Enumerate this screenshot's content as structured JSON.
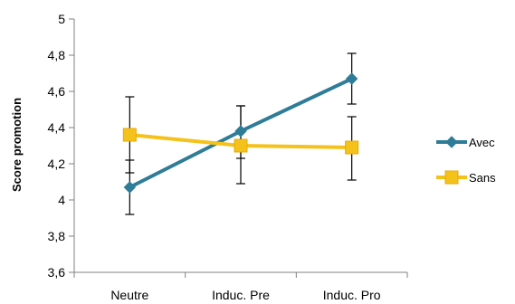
{
  "chart_data": {
    "type": "line",
    "categories": [
      "Neutre",
      "Induc. Pre",
      "Induc. Pro"
    ],
    "ylabel": "Score promotion",
    "xlabel": "",
    "ylim": [
      3.6,
      5
    ],
    "yticks": [
      "3,6",
      "3,8",
      "4",
      "4,2",
      "4,4",
      "4,6",
      "4,8",
      "5"
    ],
    "ytick_values": [
      3.6,
      3.8,
      4.0,
      4.2,
      4.4,
      4.6,
      4.8,
      5.0
    ],
    "grid": false,
    "legend_position": "right",
    "series": [
      {
        "name": "Avec",
        "color": "#2E7C98",
        "marker": "diamond",
        "values": [
          4.07,
          4.38,
          4.67
        ],
        "err_low": [
          3.92,
          4.23,
          4.53
        ],
        "err_high": [
          4.22,
          4.52,
          4.81
        ]
      },
      {
        "name": "Sans",
        "color": "#F4C21B",
        "marker": "square",
        "values": [
          4.36,
          4.3,
          4.29
        ],
        "err_low": [
          4.15,
          4.09,
          4.11
        ],
        "err_high": [
          4.57,
          4.52,
          4.46
        ]
      }
    ]
  }
}
